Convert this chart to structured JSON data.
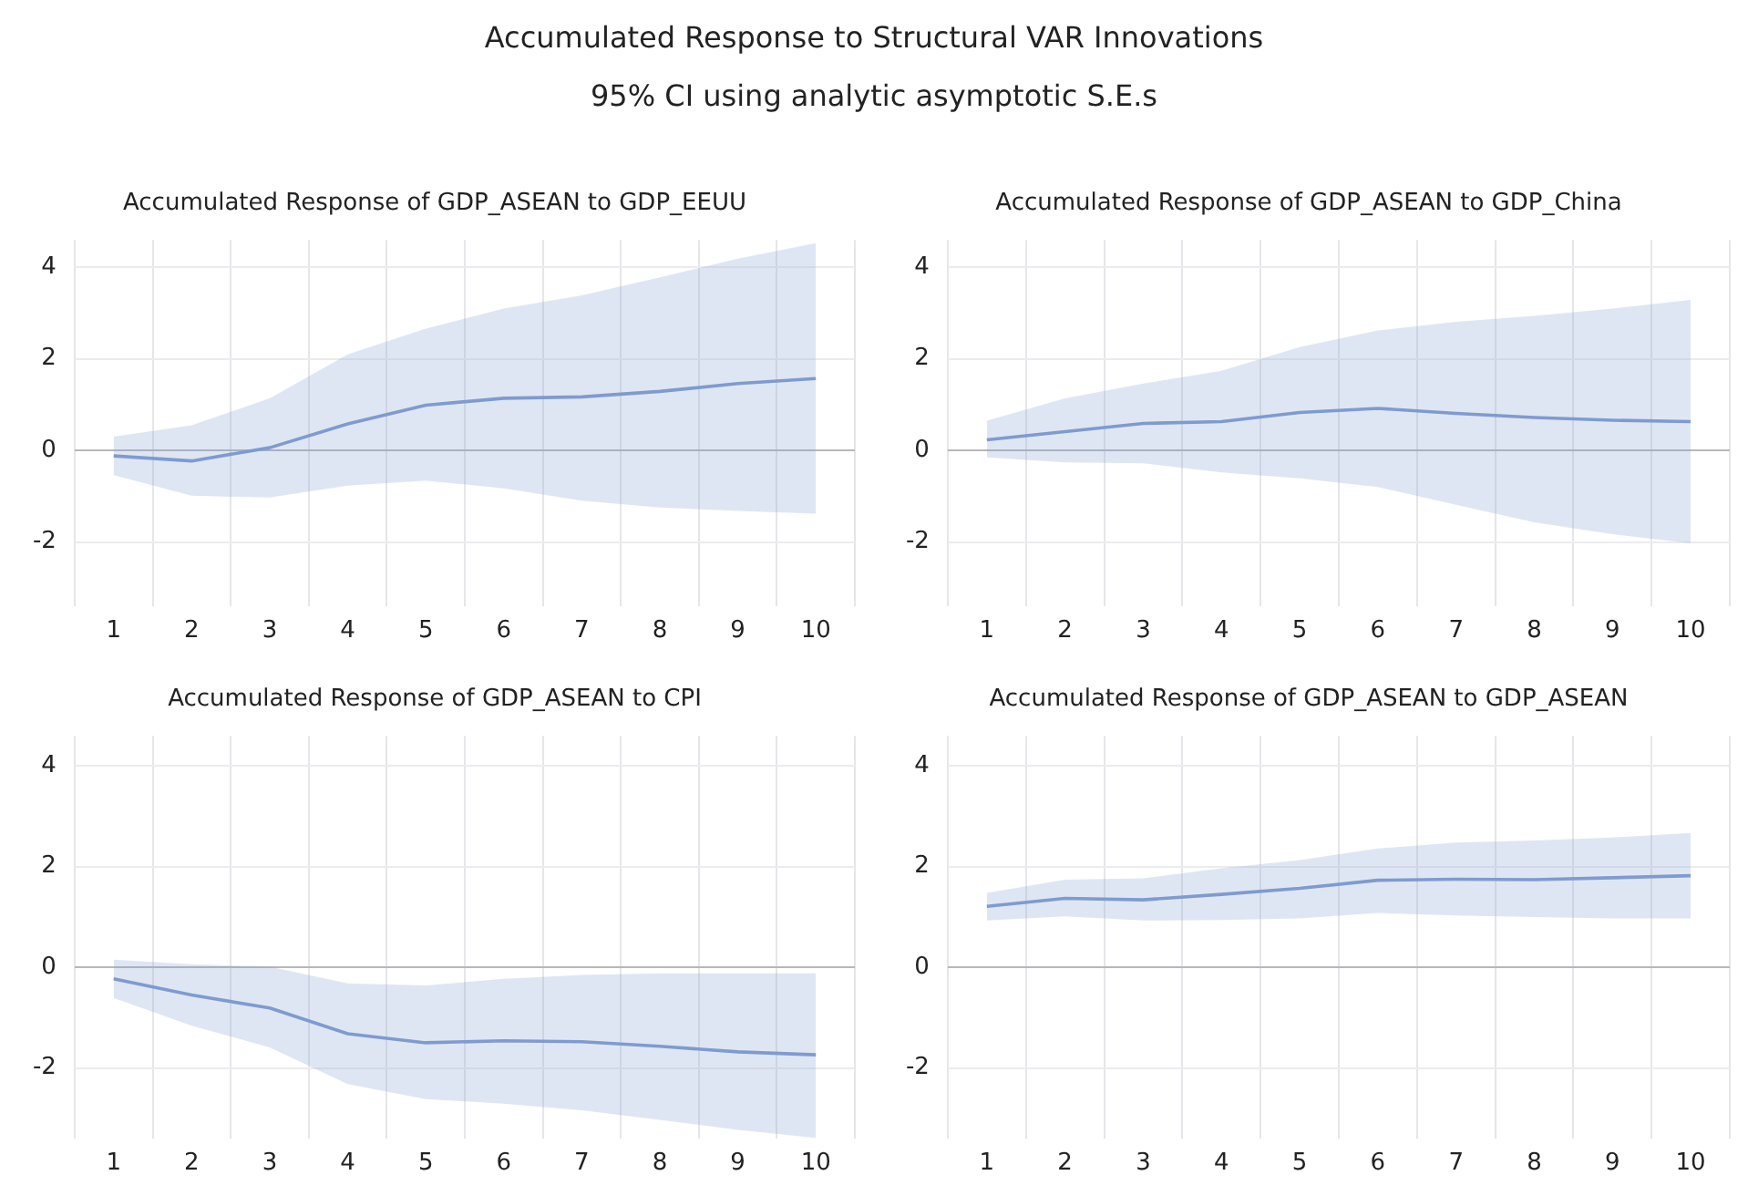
{
  "chart_data": [
    {
      "type": "other",
      "title": "Accumulated Response to Structural VAR Innovations",
      "subtitle": "95% CI using analytic asymptotic S.E.s"
    },
    {
      "type": "line",
      "title": "Accumulated Response of GDP_ASEAN to GDP_EEUU",
      "categories": [
        "1",
        "2",
        "3",
        "4",
        "5",
        "6",
        "7",
        "8",
        "9",
        "10"
      ],
      "ylim": [
        -3.4,
        4.6
      ],
      "yticks": [
        -2,
        0,
        2,
        4
      ],
      "grid": true,
      "legend": false,
      "marker": "none",
      "line_style": "solid",
      "series": [
        {
          "color": "#7e9bd0",
          "values": [
            -0.12,
            -0.23,
            0.06,
            0.58,
            0.99,
            1.14,
            1.17,
            1.29,
            1.46,
            1.57
          ],
          "lower": [
            -0.54,
            -0.99,
            -1.03,
            -0.77,
            -0.66,
            -0.83,
            -1.1,
            -1.25,
            -1.32,
            -1.38
          ],
          "upper": [
            0.3,
            0.55,
            1.14,
            2.1,
            2.66,
            3.1,
            3.39,
            3.78,
            4.19,
            4.53
          ]
        }
      ]
    },
    {
      "type": "line",
      "title": "Accumulated Response of GDP_ASEAN to GDP_China",
      "categories": [
        "1",
        "2",
        "3",
        "4",
        "5",
        "6",
        "7",
        "8",
        "9",
        "10"
      ],
      "ylim": [
        -3.4,
        4.6
      ],
      "yticks": [
        -2,
        0,
        2,
        4
      ],
      "grid": true,
      "legend": false,
      "marker": "none",
      "line_style": "solid",
      "series": [
        {
          "color": "#7e9bd0",
          "values": [
            0.23,
            0.41,
            0.59,
            0.63,
            0.83,
            0.92,
            0.81,
            0.72,
            0.66,
            0.63
          ],
          "lower": [
            -0.15,
            -0.26,
            -0.28,
            -0.48,
            -0.61,
            -0.8,
            -1.19,
            -1.57,
            -1.83,
            -2.03
          ],
          "upper": [
            0.65,
            1.14,
            1.46,
            1.74,
            2.26,
            2.62,
            2.81,
            2.94,
            3.1,
            3.29
          ]
        }
      ]
    },
    {
      "type": "line",
      "title": "Accumulated Response of GDP_ASEAN to CPI",
      "categories": [
        "1",
        "2",
        "3",
        "4",
        "5",
        "6",
        "7",
        "8",
        "9",
        "10"
      ],
      "ylim": [
        -3.4,
        4.6
      ],
      "yticks": [
        -2,
        0,
        2,
        4
      ],
      "grid": true,
      "legend": false,
      "marker": "none",
      "line_style": "solid",
      "series": [
        {
          "color": "#7e9bd0",
          "values": [
            -0.23,
            -0.55,
            -0.81,
            -1.32,
            -1.5,
            -1.46,
            -1.48,
            -1.57,
            -1.68,
            -1.74
          ],
          "lower": [
            -0.61,
            -1.16,
            -1.59,
            -2.32,
            -2.62,
            -2.71,
            -2.84,
            -3.03,
            -3.23,
            -3.39
          ],
          "upper": [
            0.15,
            0.06,
            0.01,
            -0.32,
            -0.36,
            -0.23,
            -0.15,
            -0.12,
            -0.12,
            -0.12
          ]
        }
      ]
    },
    {
      "type": "line",
      "title": "Accumulated Response of GDP_ASEAN to GDP_ASEAN",
      "categories": [
        "1",
        "2",
        "3",
        "4",
        "5",
        "6",
        "7",
        "8",
        "9",
        "10"
      ],
      "ylim": [
        -3.4,
        4.6
      ],
      "yticks": [
        -2,
        0,
        2,
        4
      ],
      "grid": true,
      "legend": false,
      "marker": "none",
      "line_style": "solid",
      "series": [
        {
          "color": "#7e9bd0",
          "values": [
            1.21,
            1.37,
            1.34,
            1.45,
            1.57,
            1.73,
            1.75,
            1.74,
            1.78,
            1.82
          ],
          "lower": [
            0.93,
            1.01,
            0.93,
            0.94,
            0.97,
            1.08,
            1.03,
            1.0,
            0.97,
            0.97
          ],
          "upper": [
            1.48,
            1.74,
            1.77,
            1.97,
            2.13,
            2.36,
            2.48,
            2.52,
            2.58,
            2.67
          ]
        }
      ]
    }
  ]
}
